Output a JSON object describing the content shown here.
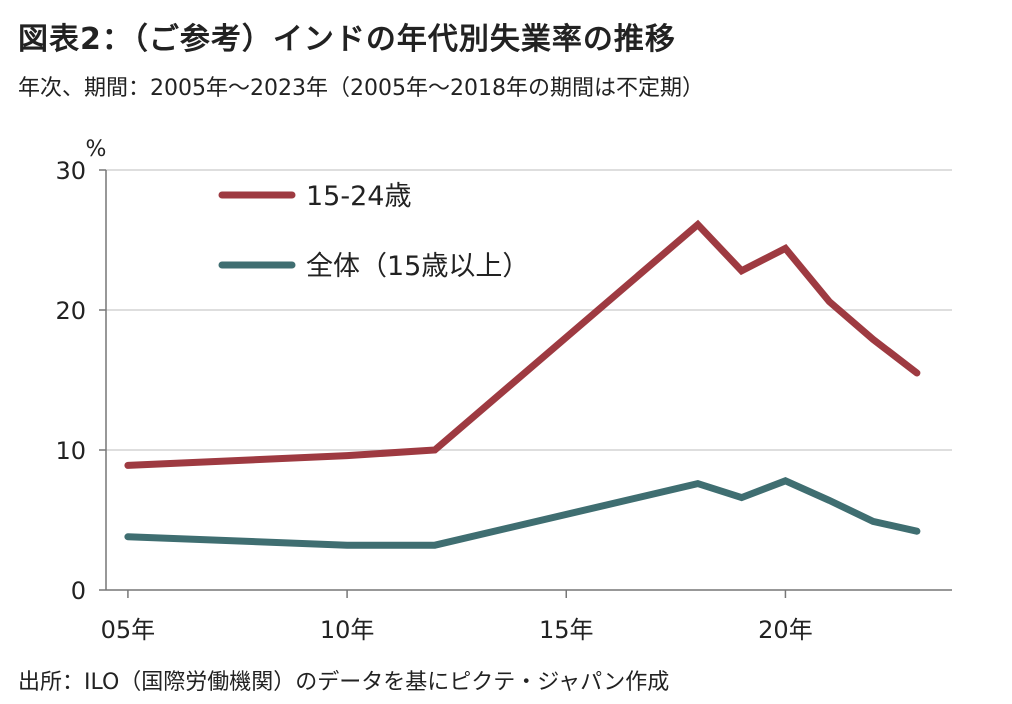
{
  "title": "図表2：（ご参考）インドの年代別失業率の推移",
  "subtitle": "年次、期間：2005年～2023年（2005年～2018年の期間は不定期）",
  "source": "出所：ILO（国際労働機関）のデータを基にピクテ・ジャパン作成",
  "chart_data": {
    "type": "line",
    "title": "図表2：（ご参考）インドの年代別失業率の推移",
    "subtitle": "年次、期間：2005年～2023年（2005年～2018年の期間は不定期）",
    "ylabel": "%",
    "xlabel": "",
    "ylim": [
      0,
      30
    ],
    "xlim": [
      2004.5,
      2023.8
    ],
    "yticks": [
      0,
      10,
      20,
      30
    ],
    "ytick_labels": [
      "0",
      "10",
      "20",
      "30"
    ],
    "xticks": [
      2005,
      2010,
      2015,
      2020
    ],
    "xtick_labels": [
      "05年",
      "10年",
      "15年",
      "20年"
    ],
    "grid": true,
    "legend_position": "top-left",
    "series": [
      {
        "name": "15-24歳",
        "color": "#9e3a41",
        "x": [
          2005,
          2010,
          2012,
          2018,
          2019,
          2020,
          2021,
          2022,
          2023
        ],
        "values": [
          8.9,
          9.6,
          10.0,
          26.1,
          22.8,
          24.4,
          20.6,
          17.9,
          15.5
        ]
      },
      {
        "name": "全体（15歳以上）",
        "color": "#3f6e71",
        "x": [
          2005,
          2010,
          2012,
          2018,
          2019,
          2020,
          2021,
          2022,
          2023
        ],
        "values": [
          3.8,
          3.2,
          3.2,
          7.6,
          6.6,
          7.8,
          6.4,
          4.9,
          4.2
        ]
      }
    ]
  }
}
